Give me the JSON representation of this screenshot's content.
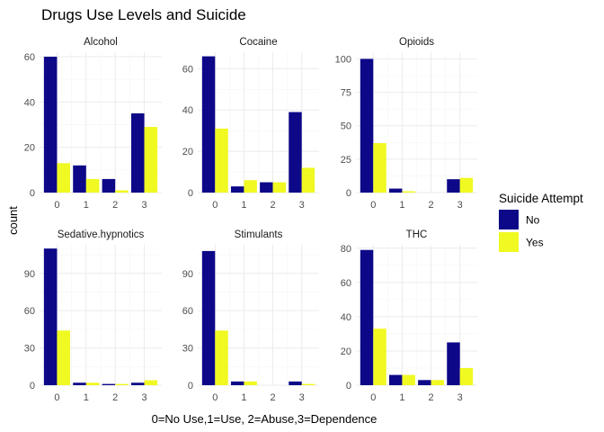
{
  "chart_data": {
    "type": "bar",
    "title": "Drugs Use Levels and Suicide",
    "xlabel": "0=No Use,1=Use, 2=Abuse,3=Dependence",
    "ylabel": "count",
    "categories": [
      "0",
      "1",
      "2",
      "3"
    ],
    "legend": {
      "title": "Suicide Attempt",
      "position": "right",
      "entries": [
        {
          "label": "No",
          "color": "#0d0887"
        },
        {
          "label": "Yes",
          "color": "#f0f921"
        }
      ]
    },
    "grid": true,
    "facets": [
      {
        "name": "Alcohol",
        "ylim": [
          0,
          62
        ],
        "yticks": [
          0,
          20,
          40,
          60
        ],
        "series": [
          {
            "name": "No",
            "values": [
              60,
              12,
              6,
              35
            ]
          },
          {
            "name": "Yes",
            "values": [
              13,
              6,
              1,
              29
            ]
          }
        ]
      },
      {
        "name": "Cocaine",
        "ylim": [
          0,
          68
        ],
        "yticks": [
          0,
          20,
          40,
          60
        ],
        "series": [
          {
            "name": "No",
            "values": [
              66,
              3,
              5,
              39
            ]
          },
          {
            "name": "Yes",
            "values": [
              31,
              6,
              5,
              12
            ]
          }
        ]
      },
      {
        "name": "Opioids",
        "ylim": [
          0,
          105
        ],
        "yticks": [
          0,
          25,
          50,
          75,
          100
        ],
        "series": [
          {
            "name": "No",
            "values": [
              100,
              3,
              0,
              10
            ]
          },
          {
            "name": "Yes",
            "values": [
              37,
              1,
              0,
              11
            ]
          }
        ]
      },
      {
        "name": "Sedative.hypnotics",
        "ylim": [
          0,
          113
        ],
        "yticks": [
          0,
          30,
          60,
          90
        ],
        "series": [
          {
            "name": "No",
            "values": [
              110,
              2,
              1,
              2
            ]
          },
          {
            "name": "Yes",
            "values": [
              44,
              2,
              1,
              4
            ]
          }
        ]
      },
      {
        "name": "Stimulants",
        "ylim": [
          0,
          113
        ],
        "yticks": [
          0,
          30,
          60,
          90
        ],
        "series": [
          {
            "name": "No",
            "values": [
              108,
              3,
              0,
              3
            ]
          },
          {
            "name": "Yes",
            "values": [
              44,
              3,
              0,
              1
            ]
          }
        ]
      },
      {
        "name": "THC",
        "ylim": [
          0,
          82
        ],
        "yticks": [
          0,
          20,
          40,
          60,
          80
        ],
        "series": [
          {
            "name": "No",
            "values": [
              79,
              6,
              3,
              25
            ]
          },
          {
            "name": "Yes",
            "values": [
              33,
              6,
              3,
              10
            ]
          }
        ]
      }
    ]
  }
}
